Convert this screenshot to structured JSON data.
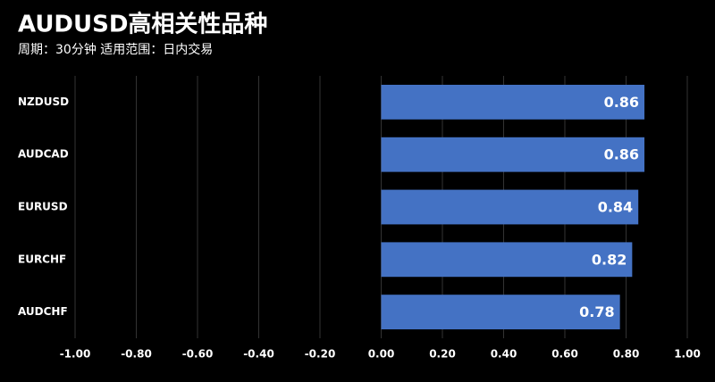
{
  "chart_data": {
    "type": "barh",
    "title": "AUDUSD高相关性品种",
    "subtitle": "周期：30分钟 适用范围：日内交易",
    "categories": [
      "NZDUSD",
      "AUDCAD",
      "EURUSD",
      "EURCHF",
      "AUDCHF"
    ],
    "values": [
      0.86,
      0.86,
      0.84,
      0.82,
      0.78
    ],
    "color": "#4472c4",
    "xlim": [
      -1,
      1
    ],
    "xticks": [
      {
        "value": -1,
        "label": "-1.00"
      },
      {
        "value": -0.8,
        "label": "-0.80"
      },
      {
        "value": -0.6,
        "label": "-0.60"
      },
      {
        "value": -0.4,
        "label": "-0.40"
      },
      {
        "value": -0.2,
        "label": "-0.20"
      },
      {
        "value": 0,
        "label": "0.00"
      },
      {
        "value": 0.2,
        "label": "0.20"
      },
      {
        "value": 0.4,
        "label": "0.40"
      },
      {
        "value": 0.6,
        "label": "0.60"
      },
      {
        "value": 0.8,
        "label": "0.80"
      },
      {
        "value": 1,
        "label": "1.00"
      }
    ],
    "grid": true
  }
}
